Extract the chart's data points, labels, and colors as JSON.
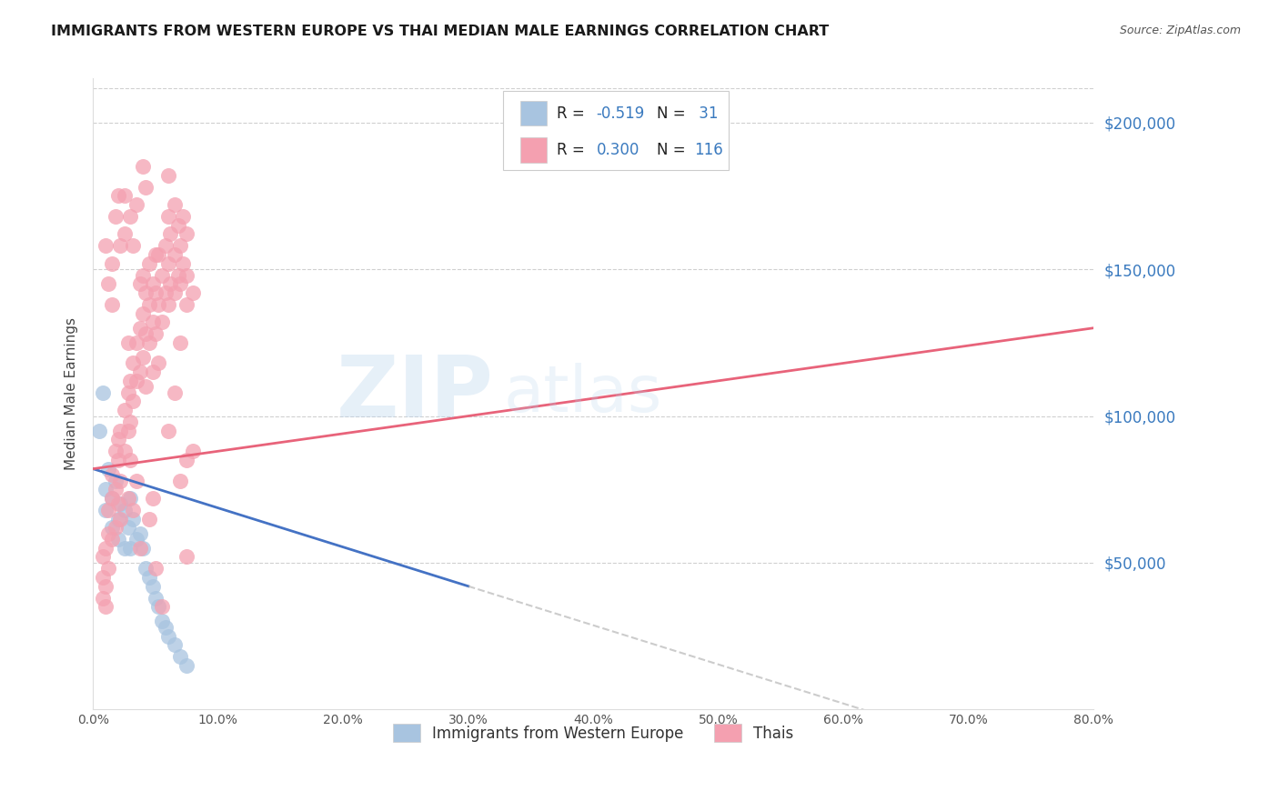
{
  "title": "IMMIGRANTS FROM WESTERN EUROPE VS THAI MEDIAN MALE EARNINGS CORRELATION CHART",
  "source": "Source: ZipAtlas.com",
  "ylabel": "Median Male Earnings",
  "ytick_labels": [
    "$50,000",
    "$100,000",
    "$150,000",
    "$200,000"
  ],
  "ytick_values": [
    50000,
    100000,
    150000,
    200000
  ],
  "xlim": [
    0.0,
    0.8
  ],
  "ylim": [
    0,
    215000
  ],
  "blue_color": "#a8c4e0",
  "pink_color": "#f4a0b0",
  "blue_line_color": "#4472c4",
  "pink_line_color": "#e8637a",
  "blue_scatter": [
    [
      0.005,
      95000
    ],
    [
      0.008,
      108000
    ],
    [
      0.01,
      75000
    ],
    [
      0.01,
      68000
    ],
    [
      0.012,
      82000
    ],
    [
      0.015,
      72000
    ],
    [
      0.015,
      62000
    ],
    [
      0.018,
      78000
    ],
    [
      0.02,
      65000
    ],
    [
      0.02,
      58000
    ],
    [
      0.022,
      70000
    ],
    [
      0.025,
      68000
    ],
    [
      0.025,
      55000
    ],
    [
      0.028,
      62000
    ],
    [
      0.03,
      72000
    ],
    [
      0.03,
      55000
    ],
    [
      0.032,
      65000
    ],
    [
      0.035,
      58000
    ],
    [
      0.038,
      60000
    ],
    [
      0.04,
      55000
    ],
    [
      0.042,
      48000
    ],
    [
      0.045,
      45000
    ],
    [
      0.048,
      42000
    ],
    [
      0.05,
      38000
    ],
    [
      0.052,
      35000
    ],
    [
      0.055,
      30000
    ],
    [
      0.058,
      28000
    ],
    [
      0.06,
      25000
    ],
    [
      0.065,
      22000
    ],
    [
      0.07,
      18000
    ],
    [
      0.075,
      15000
    ]
  ],
  "pink_scatter": [
    [
      0.008,
      45000
    ],
    [
      0.008,
      38000
    ],
    [
      0.008,
      52000
    ],
    [
      0.01,
      42000
    ],
    [
      0.01,
      55000
    ],
    [
      0.01,
      35000
    ],
    [
      0.012,
      60000
    ],
    [
      0.012,
      48000
    ],
    [
      0.012,
      68000
    ],
    [
      0.015,
      72000
    ],
    [
      0.015,
      58000
    ],
    [
      0.015,
      80000
    ],
    [
      0.018,
      75000
    ],
    [
      0.018,
      88000
    ],
    [
      0.018,
      62000
    ],
    [
      0.02,
      85000
    ],
    [
      0.02,
      70000
    ],
    [
      0.02,
      92000
    ],
    [
      0.022,
      78000
    ],
    [
      0.022,
      95000
    ],
    [
      0.022,
      65000
    ],
    [
      0.025,
      88000
    ],
    [
      0.025,
      102000
    ],
    [
      0.025,
      175000
    ],
    [
      0.028,
      95000
    ],
    [
      0.028,
      108000
    ],
    [
      0.028,
      125000
    ],
    [
      0.03,
      112000
    ],
    [
      0.03,
      98000
    ],
    [
      0.03,
      168000
    ],
    [
      0.032,
      118000
    ],
    [
      0.032,
      105000
    ],
    [
      0.032,
      158000
    ],
    [
      0.035,
      125000
    ],
    [
      0.035,
      112000
    ],
    [
      0.035,
      172000
    ],
    [
      0.038,
      115000
    ],
    [
      0.038,
      130000
    ],
    [
      0.038,
      145000
    ],
    [
      0.04,
      135000
    ],
    [
      0.04,
      120000
    ],
    [
      0.04,
      148000
    ],
    [
      0.042,
      128000
    ],
    [
      0.042,
      142000
    ],
    [
      0.045,
      138000
    ],
    [
      0.045,
      125000
    ],
    [
      0.045,
      152000
    ],
    [
      0.048,
      132000
    ],
    [
      0.048,
      145000
    ],
    [
      0.05,
      142000
    ],
    [
      0.05,
      128000
    ],
    [
      0.05,
      48000
    ],
    [
      0.052,
      138000
    ],
    [
      0.052,
      155000
    ],
    [
      0.055,
      148000
    ],
    [
      0.055,
      132000
    ],
    [
      0.055,
      35000
    ],
    [
      0.058,
      142000
    ],
    [
      0.058,
      158000
    ],
    [
      0.06,
      152000
    ],
    [
      0.06,
      138000
    ],
    [
      0.06,
      168000
    ],
    [
      0.062,
      145000
    ],
    [
      0.062,
      162000
    ],
    [
      0.065,
      155000
    ],
    [
      0.065,
      142000
    ],
    [
      0.065,
      172000
    ],
    [
      0.068,
      148000
    ],
    [
      0.068,
      165000
    ],
    [
      0.07,
      158000
    ],
    [
      0.07,
      145000
    ],
    [
      0.07,
      78000
    ],
    [
      0.072,
      152000
    ],
    [
      0.072,
      168000
    ],
    [
      0.075,
      162000
    ],
    [
      0.075,
      148000
    ],
    [
      0.075,
      85000
    ],
    [
      0.075,
      52000
    ],
    [
      0.018,
      168000
    ],
    [
      0.02,
      175000
    ],
    [
      0.022,
      158000
    ],
    [
      0.025,
      162000
    ],
    [
      0.03,
      85000
    ],
    [
      0.035,
      78000
    ],
    [
      0.04,
      185000
    ],
    [
      0.042,
      178000
    ],
    [
      0.015,
      138000
    ],
    [
      0.015,
      152000
    ],
    [
      0.045,
      65000
    ],
    [
      0.048,
      72000
    ],
    [
      0.05,
      155000
    ],
    [
      0.052,
      118000
    ],
    [
      0.06,
      95000
    ],
    [
      0.065,
      108000
    ],
    [
      0.07,
      125000
    ],
    [
      0.075,
      138000
    ],
    [
      0.08,
      88000
    ],
    [
      0.08,
      142000
    ],
    [
      0.06,
      182000
    ],
    [
      0.048,
      115000
    ],
    [
      0.01,
      158000
    ],
    [
      0.012,
      145000
    ],
    [
      0.028,
      72000
    ],
    [
      0.032,
      68000
    ],
    [
      0.038,
      55000
    ],
    [
      0.042,
      110000
    ]
  ],
  "watermark_text": "ZIP",
  "watermark_text2": "atlas",
  "background_color": "#ffffff",
  "grid_color": "#d0d0d0"
}
